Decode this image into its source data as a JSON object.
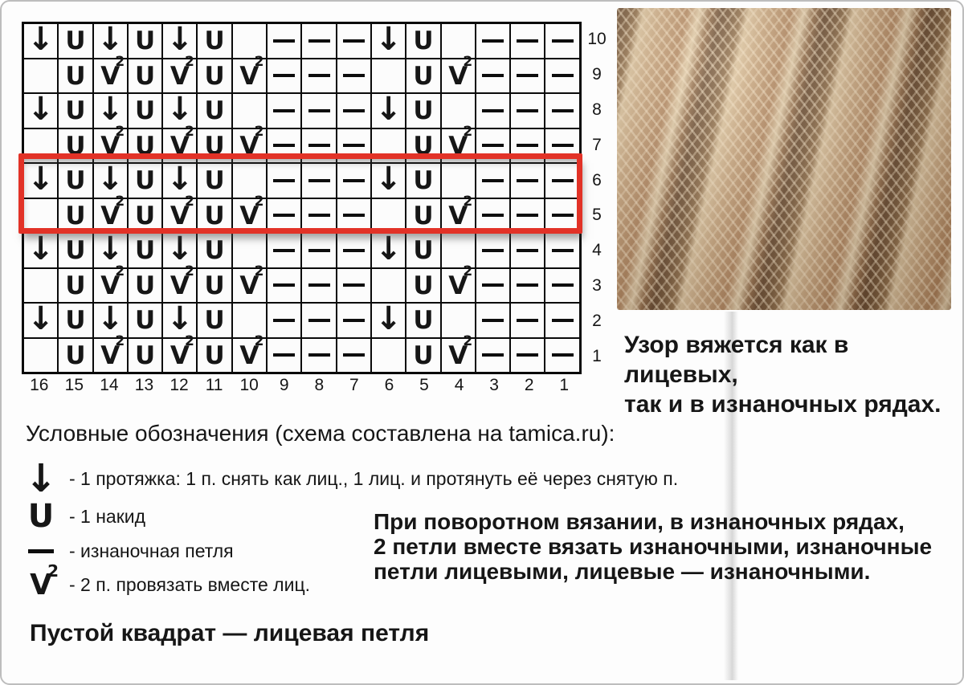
{
  "chart": {
    "type": "table",
    "description_name": "knitting-stitch-chart",
    "highlight_color": "#e23227",
    "highlighted_row_labels": [
      "6",
      "5"
    ],
    "row_labels": [
      "10",
      "9",
      "8",
      "7",
      "6",
      "5",
      "4",
      "3",
      "2",
      "1"
    ],
    "col_labels": [
      "16",
      "15",
      "14",
      "13",
      "12",
      "11",
      "10",
      "9",
      "8",
      "7",
      "6",
      "5",
      "4",
      "3",
      "2",
      "1"
    ],
    "symbols": {
      "sl": "↓",
      "yo": "U",
      "k2tog": "V",
      "k2tog_sup": "2",
      "purl": "—",
      "empty": ""
    },
    "rows": [
      [
        "sl",
        "yo",
        "sl",
        "yo",
        "sl",
        "yo",
        "",
        "p",
        "p",
        "p",
        "sl",
        "yo",
        "",
        "p",
        "p",
        "p"
      ],
      [
        "",
        "yo",
        "k2tog",
        "yo",
        "k2tog",
        "yo",
        "k2tog",
        "p",
        "p",
        "p",
        "",
        "yo",
        "k2tog",
        "p",
        "p",
        "p"
      ],
      [
        "sl",
        "yo",
        "sl",
        "yo",
        "sl",
        "yo",
        "",
        "p",
        "p",
        "p",
        "sl",
        "yo",
        "",
        "p",
        "p",
        "p"
      ],
      [
        "",
        "yo",
        "k2tog",
        "yo",
        "k2tog",
        "yo",
        "k2tog",
        "p",
        "p",
        "p",
        "",
        "yo",
        "k2tog",
        "p",
        "p",
        "p"
      ],
      [
        "sl",
        "yo",
        "sl",
        "yo",
        "sl",
        "yo",
        "",
        "p",
        "p",
        "p",
        "sl",
        "yo",
        "",
        "p",
        "p",
        "p"
      ],
      [
        "",
        "yo",
        "k2tog",
        "yo",
        "k2tog",
        "yo",
        "k2tog",
        "p",
        "p",
        "p",
        "",
        "yo",
        "k2tog",
        "p",
        "p",
        "p"
      ],
      [
        "sl",
        "yo",
        "sl",
        "yo",
        "sl",
        "yo",
        "",
        "p",
        "p",
        "p",
        "sl",
        "yo",
        "",
        "p",
        "p",
        "p"
      ],
      [
        "",
        "yo",
        "k2tog",
        "yo",
        "k2tog",
        "yo",
        "k2tog",
        "p",
        "p",
        "p",
        "",
        "yo",
        "k2tog",
        "p",
        "p",
        "p"
      ],
      [
        "sl",
        "yo",
        "sl",
        "yo",
        "sl",
        "yo",
        "",
        "p",
        "p",
        "p",
        "sl",
        "yo",
        "",
        "p",
        "p",
        "p"
      ],
      [
        "",
        "yo",
        "k2tog",
        "yo",
        "k2tog",
        "yo",
        "k2tog",
        "p",
        "p",
        "p",
        "",
        "yo",
        "k2tog",
        "p",
        "p",
        "p"
      ]
    ]
  },
  "photo": {
    "alt": "Фото образца вязаного узора",
    "base_color": "#a8805c",
    "dark_yarn_color": "#5e4129",
    "light_yarn_color": "#d7c09c"
  },
  "notes": {
    "top_right": {
      "lines": [
        "Узор вяжется как в лицевых,",
        "так и в изнаночных рядах."
      ]
    },
    "bottom_right": {
      "lines": [
        "При поворотном вязании, в изнаночных рядах,",
        "2 петли вместе вязать изнаночными, изнаночные",
        "петли лицевыми, лицевые — изнаночными."
      ]
    },
    "bottom_left": "Пустой квадрат — лицевая петля"
  },
  "legend": {
    "title": "Условные обозначения (схема составлена на tamica.ru):",
    "items": [
      {
        "symbol": "sl",
        "text": "- 1 протяжка: 1 п. снять как лиц., 1 лиц. и протянуть её через снятую п."
      },
      {
        "symbol": "yo",
        "text": "- 1 накид"
      },
      {
        "symbol": "purl",
        "text": "- изнаночная петля"
      },
      {
        "symbol": "k2tog",
        "text": "- 2 п. провязать вместе лиц."
      }
    ]
  }
}
